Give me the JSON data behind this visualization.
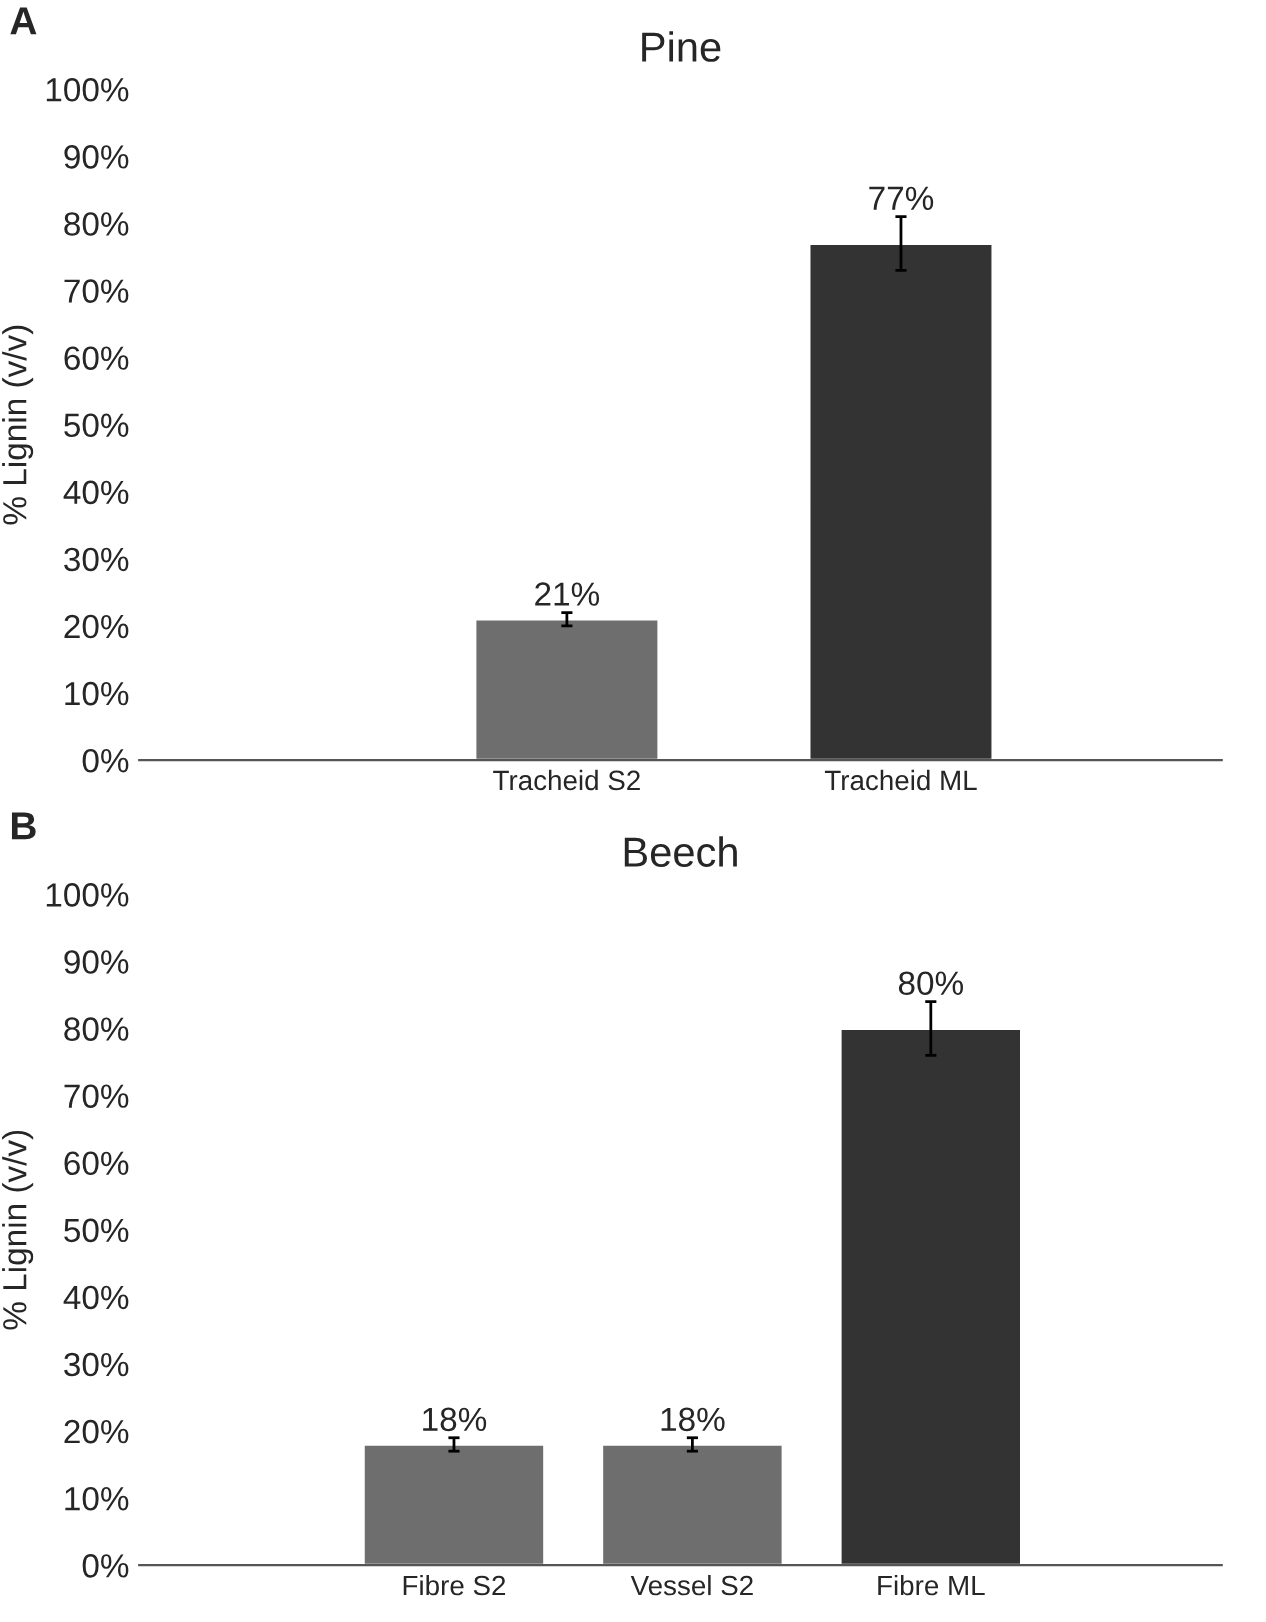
{
  "chart_data": [
    {
      "type": "bar",
      "title": "Pine",
      "ylabel": "% Lignin (v/v)",
      "annotations": [
        "A"
      ],
      "categories": [
        "Tracheid S2",
        "Tracheid ML"
      ],
      "values": [
        21,
        77
      ],
      "colors": [
        "#6e6e6e",
        "#333333"
      ],
      "errors": [
        1,
        4
      ],
      "value_labels": [
        "21%",
        "77%"
      ],
      "ylim": [
        0,
        100
      ],
      "yticks": [
        {
          "value": 0,
          "label": "0%"
        },
        {
          "value": 10,
          "label": "10%"
        },
        {
          "value": 20,
          "label": "20%"
        },
        {
          "value": 30,
          "label": "30%"
        },
        {
          "value": 40,
          "label": "40%"
        },
        {
          "value": 50,
          "label": "50%"
        },
        {
          "value": 60,
          "label": "60%"
        },
        {
          "value": 70,
          "label": "70%"
        },
        {
          "value": 80,
          "label": "80%"
        },
        {
          "value": 90,
          "label": "90%"
        },
        {
          "value": 100,
          "label": "100%"
        }
      ],
      "grid": false
    },
    {
      "type": "bar",
      "title": "Beech",
      "ylabel": "% Lignin (v/v)",
      "annotations": [
        "B"
      ],
      "categories": [
        "Fibre S2",
        "Vessel S2",
        "Fibre ML"
      ],
      "values": [
        18,
        18,
        80
      ],
      "colors": [
        "#6e6e6e",
        "#6e6e6e",
        "#333333"
      ],
      "errors": [
        1,
        1,
        4
      ],
      "value_labels": [
        "18%",
        "18%",
        "80%"
      ],
      "ylim": [
        0,
        100
      ],
      "yticks": [
        {
          "value": 0,
          "label": "0%"
        },
        {
          "value": 10,
          "label": "10%"
        },
        {
          "value": 20,
          "label": "20%"
        },
        {
          "value": 30,
          "label": "30%"
        },
        {
          "value": 40,
          "label": "40%"
        },
        {
          "value": 50,
          "label": "50%"
        },
        {
          "value": 60,
          "label": "60%"
        },
        {
          "value": 70,
          "label": "70%"
        },
        {
          "value": 80,
          "label": "80%"
        },
        {
          "value": 90,
          "label": "90%"
        },
        {
          "value": 100,
          "label": "100%"
        }
      ],
      "grid": false
    }
  ]
}
